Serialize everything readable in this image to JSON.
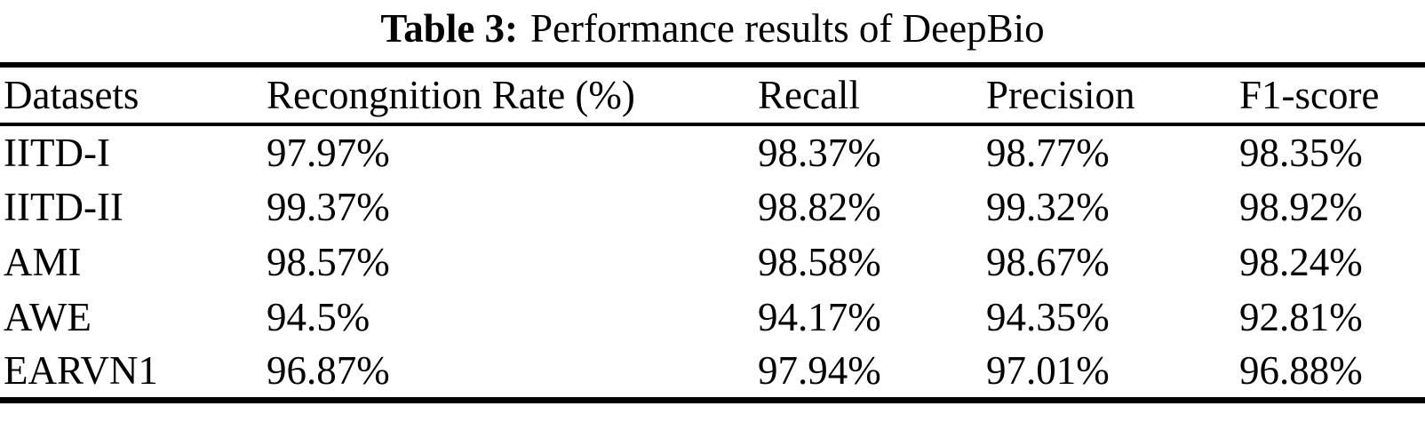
{
  "caption": {
    "label": "Table 3:",
    "text": "Performance results of DeepBio"
  },
  "table": {
    "columns": [
      "Datasets",
      "Recongnition Rate (%)",
      "Recall",
      "Precision",
      "F1-score"
    ],
    "rows": [
      {
        "dataset": "IITD-I",
        "recognition_rate": "97.97%",
        "recall": "98.37%",
        "precision": "98.77%",
        "f1_score": "98.35%"
      },
      {
        "dataset": "IITD-II",
        "recognition_rate": "99.37%",
        "recall": "98.82%",
        "precision": "99.32%",
        "f1_score": "98.92%"
      },
      {
        "dataset": "AMI",
        "recognition_rate": "98.57%",
        "recall": "98.58%",
        "precision": "98.67%",
        "f1_score": "98.24%"
      },
      {
        "dataset": "AWE",
        "recognition_rate": "94.5%",
        "recall": "94.17%",
        "precision": "94.35%",
        "f1_score": "92.81%"
      },
      {
        "dataset": "EARVN1",
        "recognition_rate": "96.87%",
        "recall": "97.94%",
        "precision": "97.01%",
        "f1_score": "96.88%"
      }
    ],
    "style": {
      "text_color": "#000000",
      "background_color": "#ffffff",
      "rule_color": "#000000"
    }
  }
}
